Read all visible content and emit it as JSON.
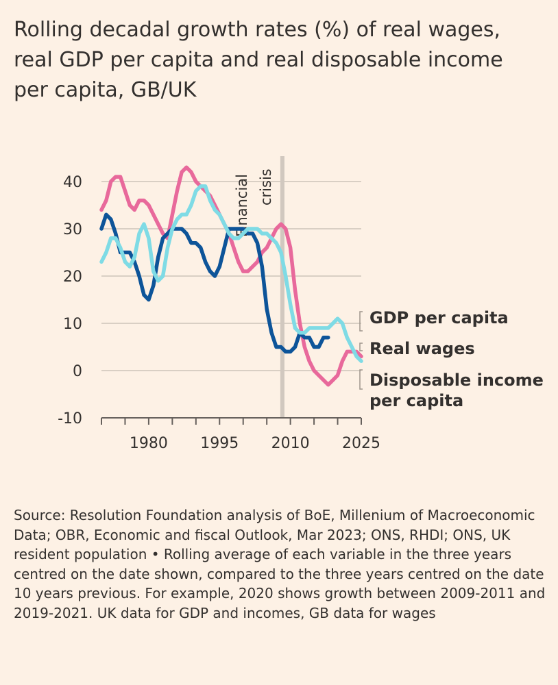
{
  "title": "Rolling decadal growth rates (%) of real wages, real GDP per capita and real disposable income per capita, GB/UK",
  "source": "Source: Resolution Foundation analysis of BoE, Millenium of Macroeconomic Data; OBR, Economic and fiscal Outlook, Mar 2023; ONS, RHDI; ONS, UK resident population • Rolling average of each variable in the three years centred on the date shown, compared to the three years centred on the date 10 years previous. For example, 2020 shows growth between 2009-2011 and 2019-2021. UK data for GDP and incomes, GB data for wages",
  "chart_data": {
    "type": "line",
    "title": "Rolling decadal growth rates (%) of real wages, real GDP per capita and real disposable income per capita, GB/UK",
    "xlabel": "",
    "ylabel": "",
    "xlim": [
      1970,
      2025
    ],
    "ylim": [
      -10,
      40
    ],
    "x_ticks": [
      1980,
      1995,
      2010,
      2025
    ],
    "y_ticks": [
      -10,
      0,
      10,
      20,
      30,
      40
    ],
    "annotation": {
      "text_line1": "Financial",
      "text_line2": "crisis",
      "x": 2008.3
    },
    "series": [
      {
        "name": "Disposable income per capita",
        "legend_label": [
          "Disposable income",
          "per capita"
        ],
        "color": "#e8699b",
        "points": [
          [
            1970,
            34
          ],
          [
            1971,
            36
          ],
          [
            1972,
            40
          ],
          [
            1973,
            41
          ],
          [
            1974,
            41
          ],
          [
            1975,
            38
          ],
          [
            1976,
            35
          ],
          [
            1977,
            34
          ],
          [
            1978,
            36
          ],
          [
            1979,
            36
          ],
          [
            1980,
            35
          ],
          [
            1981,
            33
          ],
          [
            1982,
            31
          ],
          [
            1983,
            29
          ],
          [
            1984,
            28
          ],
          [
            1985,
            33
          ],
          [
            1986,
            38
          ],
          [
            1987,
            42
          ],
          [
            1988,
            43
          ],
          [
            1989,
            42
          ],
          [
            1990,
            40
          ],
          [
            1991,
            39
          ],
          [
            1992,
            38
          ],
          [
            1993,
            37
          ],
          [
            1994,
            35
          ],
          [
            1995,
            33
          ],
          [
            1996,
            31
          ],
          [
            1997,
            29
          ],
          [
            1998,
            26
          ],
          [
            1999,
            23
          ],
          [
            2000,
            21
          ],
          [
            2001,
            21
          ],
          [
            2002,
            22
          ],
          [
            2003,
            23
          ],
          [
            2004,
            25
          ],
          [
            2005,
            26
          ],
          [
            2006,
            28
          ],
          [
            2007,
            30
          ],
          [
            2008,
            31
          ],
          [
            2009,
            30
          ],
          [
            2010,
            26
          ],
          [
            2011,
            17
          ],
          [
            2012,
            10
          ],
          [
            2013,
            5
          ],
          [
            2014,
            2
          ],
          [
            2015,
            0
          ],
          [
            2016,
            -1
          ],
          [
            2017,
            -2
          ],
          [
            2018,
            -3
          ],
          [
            2019,
            -2
          ],
          [
            2020,
            -1
          ],
          [
            2021,
            2
          ],
          [
            2022,
            4
          ],
          [
            2023,
            4
          ],
          [
            2024,
            4
          ],
          [
            2025,
            3
          ]
        ]
      },
      {
        "name": "GDP per capita",
        "legend_label": [
          "GDP per capita"
        ],
        "color": "#0d5499",
        "points": [
          [
            1970,
            30
          ],
          [
            1971,
            33
          ],
          [
            1972,
            32
          ],
          [
            1973,
            29
          ],
          [
            1974,
            25
          ],
          [
            1975,
            25
          ],
          [
            1976,
            25
          ],
          [
            1977,
            23
          ],
          [
            1978,
            20
          ],
          [
            1979,
            16
          ],
          [
            1980,
            15
          ],
          [
            1981,
            18
          ],
          [
            1982,
            24
          ],
          [
            1983,
            28
          ],
          [
            1984,
            29
          ],
          [
            1985,
            30
          ],
          [
            1986,
            30
          ],
          [
            1987,
            30
          ],
          [
            1988,
            29
          ],
          [
            1989,
            27
          ],
          [
            1990,
            27
          ],
          [
            1991,
            26
          ],
          [
            1992,
            23
          ],
          [
            1993,
            21
          ],
          [
            1994,
            20
          ],
          [
            1995,
            22
          ],
          [
            1996,
            26
          ],
          [
            1997,
            30
          ],
          [
            1998,
            30
          ],
          [
            1999,
            30
          ],
          [
            2000,
            30
          ],
          [
            2001,
            29
          ],
          [
            2002,
            29
          ],
          [
            2003,
            27
          ],
          [
            2004,
            22
          ],
          [
            2005,
            13
          ],
          [
            2006,
            8
          ],
          [
            2007,
            5
          ],
          [
            2008,
            5
          ],
          [
            2009,
            4
          ],
          [
            2010,
            4
          ],
          [
            2011,
            5
          ],
          [
            2012,
            8
          ],
          [
            2013,
            7
          ],
          [
            2014,
            7
          ],
          [
            2015,
            5
          ],
          [
            2016,
            5
          ],
          [
            2017,
            7
          ],
          [
            2018,
            7
          ]
        ]
      },
      {
        "name": "Real wages",
        "legend_label": [
          "Real wages"
        ],
        "color": "#7fdbe5",
        "points": [
          [
            1970,
            23
          ],
          [
            1971,
            25
          ],
          [
            1972,
            28
          ],
          [
            1973,
            28
          ],
          [
            1974,
            26
          ],
          [
            1975,
            23
          ],
          [
            1976,
            22
          ],
          [
            1977,
            24
          ],
          [
            1978,
            29
          ],
          [
            1979,
            31
          ],
          [
            1980,
            28
          ],
          [
            1981,
            21
          ],
          [
            1982,
            19
          ],
          [
            1983,
            20
          ],
          [
            1984,
            26
          ],
          [
            1985,
            30
          ],
          [
            1986,
            32
          ],
          [
            1987,
            33
          ],
          [
            1988,
            33
          ],
          [
            1989,
            35
          ],
          [
            1990,
            38
          ],
          [
            1991,
            39
          ],
          [
            1992,
            39
          ],
          [
            1993,
            36
          ],
          [
            1994,
            34
          ],
          [
            1995,
            33
          ],
          [
            1996,
            31
          ],
          [
            1997,
            29
          ],
          [
            1998,
            28
          ],
          [
            1999,
            28
          ],
          [
            2000,
            29
          ],
          [
            2001,
            30
          ],
          [
            2002,
            30
          ],
          [
            2003,
            30
          ],
          [
            2004,
            29
          ],
          [
            2005,
            29
          ],
          [
            2006,
            28
          ],
          [
            2007,
            27
          ],
          [
            2008,
            25
          ],
          [
            2009,
            20
          ],
          [
            2010,
            14
          ],
          [
            2011,
            9
          ],
          [
            2012,
            8
          ],
          [
            2013,
            8
          ],
          [
            2014,
            9
          ],
          [
            2015,
            9
          ],
          [
            2016,
            9
          ],
          [
            2017,
            9
          ],
          [
            2018,
            9
          ],
          [
            2019,
            10
          ],
          [
            2020,
            11
          ],
          [
            2021,
            10
          ],
          [
            2022,
            7
          ],
          [
            2023,
            5
          ],
          [
            2024,
            3
          ],
          [
            2025,
            2
          ]
        ]
      }
    ]
  }
}
